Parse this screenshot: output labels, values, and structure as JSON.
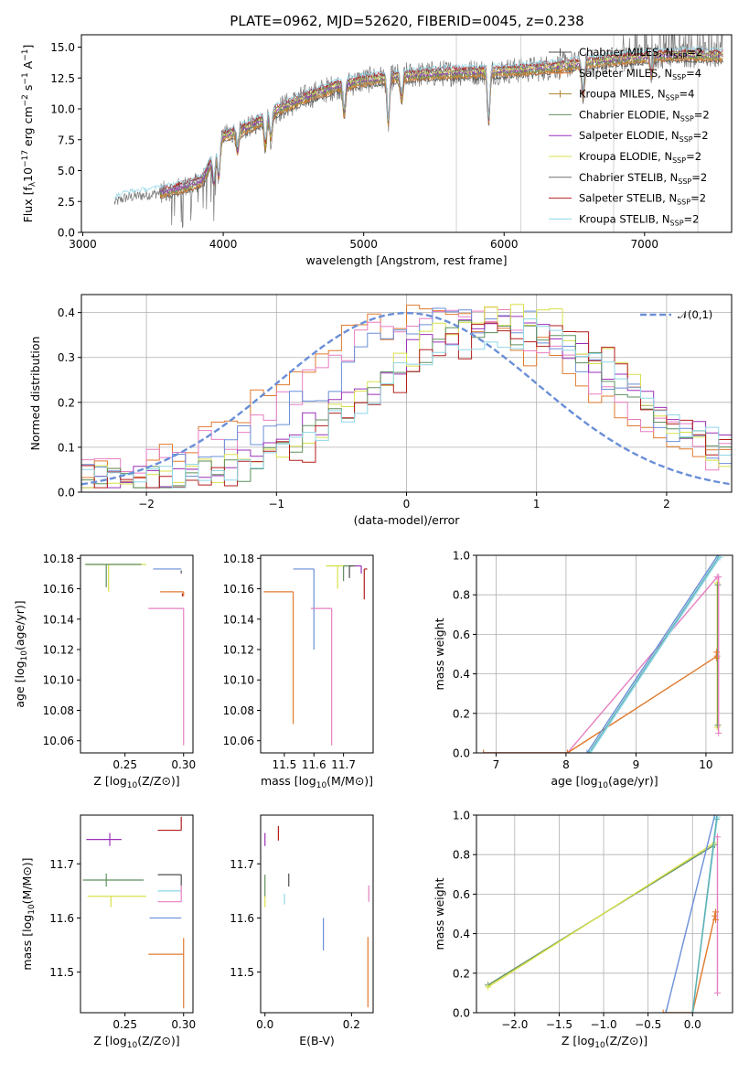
{
  "figure": {
    "title": "PLATE=0962, MJD=52620, FIBERID=0045, z=0.238"
  },
  "colors": {
    "Chabrier MILES": "#4d4d4d",
    "Salpeter MILES": "#e07a2e",
    "Kroupa MILES": "#b08830",
    "Chabrier ELODIE": "#5f8f5f",
    "Salpeter ELODIE": "#9b30b8",
    "Kroupa ELODIE": "#d8e04a",
    "Chabrier STELIB": "#6f6f6f",
    "Salpeter STELIB": "#b41e1e",
    "Kroupa STELIB": "#8fd6e8",
    "pink": "#e77fc2",
    "blue": "#6a8fd8",
    "orange": "#e07a2e",
    "teal": "#5bb0b0"
  },
  "chart_data": [
    {
      "type": "line",
      "panel": "spectrum",
      "title": "PLATE=0962, MJD=52620, FIBERID=0045, z=0.238",
      "xlabel": "wavelength [Angstrom, rest frame]",
      "ylabel_parts": [
        "Flux [f",
        "λ",
        "10",
        "−17",
        " erg cm",
        "−2",
        " s",
        "−1",
        " A",
        "−1",
        "]"
      ],
      "xlim": [
        2990,
        7620
      ],
      "ylim": [
        0,
        16
      ],
      "xticks": [
        3000,
        4000,
        5000,
        6000,
        7000
      ],
      "yticks": [
        0.0,
        2.5,
        5.0,
        7.5,
        10.0,
        12.5,
        15.0
      ],
      "ytick_labels": [
        "0.0",
        "2.5",
        "5.0",
        "7.5",
        "10.0",
        "12.5",
        "15.0"
      ],
      "legend_position": "upper right",
      "legend": [
        {
          "name": "Chabrier MILES",
          "nssp": "2",
          "marker": "+"
        },
        {
          "name": "Salpeter MILES",
          "nssp": "4",
          "marker": "+"
        },
        {
          "name": "Kroupa MILES",
          "nssp": "4",
          "marker": "+"
        },
        {
          "name": "Chabrier ELODIE",
          "nssp": "2",
          "marker": ""
        },
        {
          "name": "Salpeter ELODIE",
          "nssp": "2",
          "marker": ""
        },
        {
          "name": "Kroupa ELODIE",
          "nssp": "2",
          "marker": ""
        },
        {
          "name": "Chabrier STELIB",
          "nssp": "2",
          "marker": ""
        },
        {
          "name": "Salpeter STELIB",
          "nssp": "2",
          "marker": ""
        },
        {
          "name": "Kroupa STELIB",
          "nssp": "2",
          "marker": ""
        }
      ],
      "legend_suffix": "SSP",
      "continuum_knots": [
        [
          3225,
          2.4
        ],
        [
          3300,
          2.8
        ],
        [
          3500,
          3.1
        ],
        [
          3700,
          3.6
        ],
        [
          3850,
          4.2
        ],
        [
          3950,
          6.5
        ],
        [
          4000,
          7.8
        ],
        [
          4200,
          8.6
        ],
        [
          4400,
          10.0
        ],
        [
          4600,
          11.0
        ],
        [
          4800,
          11.8
        ],
        [
          5000,
          12.3
        ],
        [
          5300,
          12.7
        ],
        [
          5600,
          12.9
        ],
        [
          5900,
          13.0
        ],
        [
          6200,
          13.2
        ],
        [
          6500,
          13.6
        ],
        [
          6800,
          14.0
        ],
        [
          7100,
          14.3
        ],
        [
          7300,
          14.4
        ],
        [
          7560,
          14.3
        ]
      ],
      "data_x_range": [
        3225,
        7560
      ],
      "model_x_range": [
        3550,
        7560
      ]
    },
    {
      "type": "histogram",
      "panel": "residuals",
      "xlabel": "(data-model)/error",
      "ylabel": "Normed distribution",
      "xlim": [
        -2.5,
        2.5
      ],
      "ylim": [
        0,
        0.44
      ],
      "xticks": [
        -2,
        -1,
        0,
        1,
        2
      ],
      "xtick_labels": [
        "−2",
        "−1",
        "0",
        "1",
        "2"
      ],
      "yticks": [
        0.0,
        0.1,
        0.2,
        0.3,
        0.4
      ],
      "ytick_labels": [
        "0.0",
        "0.1",
        "0.2",
        "0.3",
        "0.4"
      ],
      "grid": true,
      "legend_position": "upper right",
      "gaussian": {
        "name": "𝒩(0,1)",
        "mu": 0,
        "sigma": 1
      },
      "bins": 50,
      "series": [
        {
          "name": "Salpeter MILES",
          "color": "#e07a2e",
          "center": 0.2,
          "sigma": 1.05,
          "peak": 0.37,
          "noise": 0.045
        },
        {
          "name": "Chabrier MILES",
          "color": "#e77fc2",
          "center": 0.35,
          "sigma": 1.05,
          "peak": 0.36,
          "noise": 0.04
        },
        {
          "name": "Kroupa STELIB",
          "color": "#6a8fd8",
          "center": 0.5,
          "sigma": 1.0,
          "peak": 0.37,
          "noise": 0.04
        },
        {
          "name": "Salpeter ELODIE",
          "color": "#9b30b8",
          "center": 0.7,
          "sigma": 0.95,
          "peak": 0.35,
          "noise": 0.035
        },
        {
          "name": "Kroupa ELODIE",
          "color": "#d8e04a",
          "center": 0.75,
          "sigma": 0.9,
          "peak": 0.37,
          "noise": 0.04
        },
        {
          "name": "Chabrier ELODIE",
          "color": "#5f8f5f",
          "center": 0.75,
          "sigma": 0.9,
          "peak": 0.34,
          "noise": 0.035
        },
        {
          "name": "Salpeter STELIB",
          "color": "#b41e1e",
          "center": 0.85,
          "sigma": 0.92,
          "peak": 0.33,
          "noise": 0.04
        },
        {
          "name": "Kroupa STELIB",
          "color": "#8fd6e8",
          "center": 0.8,
          "sigma": 0.95,
          "peak": 0.33,
          "noise": 0.035
        }
      ]
    },
    {
      "type": "errorbar",
      "panel": "age-vs-Z",
      "xlabel": "Z [log10(Z/Z⊙)]",
      "ylabel": "age [log10(age/yr)]",
      "xlim": [
        0.212,
        0.308
      ],
      "ylim": [
        10.052,
        10.182
      ],
      "xticks": [
        0.25,
        0.3
      ],
      "xtick_labels": [
        "0.25",
        "0.30"
      ],
      "yticks": [
        10.06,
        10.08,
        10.1,
        10.12,
        10.14,
        10.16,
        10.18
      ],
      "ytick_labels": [
        "10.06",
        "10.08",
        "10.10",
        "10.12",
        "10.14",
        "10.16",
        "10.18"
      ],
      "points": [
        {
          "x": 0.236,
          "y": 10.176,
          "xerr": [
            0.02,
            0.032
          ],
          "yerr": [
            0.018,
            0.0
          ],
          "color": "#d8e04a"
        },
        {
          "x": 0.234,
          "y": 10.176,
          "xerr": [
            0.018,
            0.03
          ],
          "yerr": [
            0.015,
            0.0
          ],
          "color": "#5f8f5f"
        },
        {
          "x": 0.298,
          "y": 10.173,
          "xerr": [
            0.024,
            0.0
          ],
          "yerr": [
            0.0,
            0.0
          ],
          "color": "#6a8fd8"
        },
        {
          "x": 0.298,
          "y": 10.172,
          "xerr": [
            0.0,
            0.0
          ],
          "yerr": [
            0.002,
            0.0
          ],
          "color": "#4d4d4d"
        },
        {
          "x": 0.3,
          "y": 10.158,
          "xerr": [
            0.02,
            0.0
          ],
          "yerr": [
            0.003,
            0.0
          ],
          "color": "#e07a2e"
        },
        {
          "x": 0.3,
          "y": 10.147,
          "xerr": [
            0.03,
            0.0
          ],
          "yerr": [
            0.09,
            0.0
          ],
          "color": "#e77fc2"
        },
        {
          "x": 0.299,
          "y": 10.157,
          "xerr": [
            0.0,
            0.0
          ],
          "yerr": [
            0.002,
            0.0
          ],
          "color": "#b41e1e"
        }
      ]
    },
    {
      "type": "errorbar",
      "panel": "age-vs-mass",
      "xlabel": "mass [log10(M/M⊙)]",
      "xlim": [
        11.42,
        11.8
      ],
      "ylim": [
        10.052,
        10.182
      ],
      "xticks": [
        11.5,
        11.6,
        11.7
      ],
      "xtick_labels": [
        "11.5",
        "11.6",
        "11.7"
      ],
      "yticks": [
        10.06,
        10.08,
        10.1,
        10.12,
        10.14,
        10.16,
        10.18
      ],
      "ytick_labels": [
        "10.06",
        "10.08",
        "10.10",
        "10.12",
        "10.14",
        "10.16",
        "10.18"
      ],
      "points": [
        {
          "x": 11.53,
          "y": 10.158,
          "xerr": [
            0.1,
            0.0
          ],
          "yerr": [
            0.087,
            0.0
          ],
          "color": "#e07a2e"
        },
        {
          "x": 11.6,
          "y": 10.173,
          "xerr": [
            0.07,
            0.0
          ],
          "yerr": [
            0.053,
            0.0
          ],
          "color": "#6a8fd8"
        },
        {
          "x": 11.66,
          "y": 10.147,
          "xerr": [
            0.07,
            0.0
          ],
          "yerr": [
            0.09,
            0.0
          ],
          "color": "#e77fc2"
        },
        {
          "x": 11.68,
          "y": 10.175,
          "xerr": [
            0.04,
            0.03
          ],
          "yerr": [
            0.015,
            0.0
          ],
          "color": "#d8e04a"
        },
        {
          "x": 11.7,
          "y": 10.175,
          "xerr": [
            0.0,
            0.03
          ],
          "yerr": [
            0.01,
            0.0
          ],
          "color": "#5f8f5f"
        },
        {
          "x": 11.72,
          "y": 10.175,
          "xerr": [
            0.0,
            0.02
          ],
          "yerr": [
            0.008,
            0.0
          ],
          "color": "#4d4d4d"
        },
        {
          "x": 11.76,
          "y": 10.175,
          "xerr": [
            0.02,
            0.0
          ],
          "yerr": [
            0.005,
            0.0
          ],
          "color": "#9b30b8"
        },
        {
          "x": 11.77,
          "y": 10.173,
          "xerr": [
            0.0,
            0.01
          ],
          "yerr": [
            0.02,
            0.0
          ],
          "color": "#b41e1e"
        }
      ]
    },
    {
      "type": "line",
      "panel": "massweight-vs-age",
      "xlabel": "age  [log10(age/yr)]",
      "ylabel": "mass weight",
      "xlim": [
        6.72,
        10.38
      ],
      "ylim": [
        0,
        1
      ],
      "xticks": [
        7,
        8,
        9,
        10
      ],
      "xtick_labels": [
        "7",
        "8",
        "9",
        "10"
      ],
      "yticks": [
        0.0,
        0.2,
        0.4,
        0.6,
        0.8,
        1.0
      ],
      "ytick_labels": [
        "0.0",
        "0.2",
        "0.4",
        "0.6",
        "0.8",
        "1.0"
      ],
      "grid": true,
      "series": [
        {
          "color": "#e77fc2",
          "x": [
            6.82,
            8.02,
            10.16
          ],
          "y": [
            0.0,
            0.0,
            0.89
          ]
        },
        {
          "color": "#e07a2e",
          "x": [
            6.82,
            8.02,
            10.16
          ],
          "y": [
            0.0,
            0.0,
            0.49
          ]
        },
        {
          "color": "#6a8fd8",
          "x": [
            8.3,
            10.17
          ],
          "y": [
            0.0,
            1.0
          ]
        },
        {
          "color": "#5bb0b0",
          "x": [
            8.33,
            10.18
          ],
          "y": [
            0.0,
            0.99
          ]
        },
        {
          "color": "#8fd6e8",
          "x": [
            8.35,
            10.2
          ],
          "y": [
            0.0,
            0.99
          ]
        },
        {
          "color": "#d8e04a",
          "x": [
            10.16,
            10.16
          ],
          "y": [
            0.13,
            0.86
          ]
        },
        {
          "color": "#5f8f5f",
          "x": [
            10.17,
            10.17
          ],
          "y": [
            0.14,
            0.85
          ]
        },
        {
          "color": "#e77fc2",
          "x": [
            10.18,
            10.18
          ],
          "y": [
            0.1,
            0.89
          ]
        },
        {
          "color": "#e07a2e",
          "x": [
            10.15,
            10.15
          ],
          "y": [
            0.48,
            0.51
          ]
        }
      ]
    },
    {
      "type": "errorbar",
      "panel": "mass-vs-Z",
      "xlabel": "Z [log10(Z/Z⊙)]",
      "ylabel": "mass [log10(M/M⊙)]",
      "xlim": [
        0.212,
        0.308
      ],
      "ylim": [
        11.425,
        11.79
      ],
      "xticks": [
        0.25,
        0.3
      ],
      "xtick_labels": [
        "0.25",
        "0.30"
      ],
      "yticks": [
        11.5,
        11.6,
        11.7
      ],
      "ytick_labels": [
        "11.5",
        "11.6",
        "11.7"
      ],
      "points": [
        {
          "x": 0.237,
          "y": 11.745,
          "xerr": [
            0.02,
            0.01
          ],
          "yerr": [
            0.012,
            0.012
          ],
          "color": "#9b30b8"
        },
        {
          "x": 0.234,
          "y": 11.67,
          "xerr": [
            0.02,
            0.032
          ],
          "yerr": [
            0.012,
            0.012
          ],
          "color": "#5f8f5f"
        },
        {
          "x": 0.238,
          "y": 11.64,
          "xerr": [
            0.02,
            0.03
          ],
          "yerr": [
            0.02,
            0.0
          ],
          "color": "#d8e04a"
        },
        {
          "x": 0.298,
          "y": 11.762,
          "xerr": [
            0.02,
            0.0
          ],
          "yerr": [
            0.0,
            0.025
          ],
          "color": "#b41e1e"
        },
        {
          "x": 0.298,
          "y": 11.68,
          "xerr": [
            0.02,
            0.0
          ],
          "yerr": [
            0.02,
            0.0
          ],
          "color": "#4d4d4d"
        },
        {
          "x": 0.298,
          "y": 11.65,
          "xerr": [
            0.02,
            0.0
          ],
          "yerr": [
            0.0,
            0.0
          ],
          "color": "#8fd6e8"
        },
        {
          "x": 0.298,
          "y": 11.63,
          "xerr": [
            0.02,
            0.0
          ],
          "yerr": [
            0.0,
            0.03
          ],
          "color": "#e77fc2"
        },
        {
          "x": 0.298,
          "y": 11.6,
          "xerr": [
            0.027,
            0.0
          ],
          "yerr": [
            0.0,
            0.0
          ],
          "color": "#6a8fd8"
        },
        {
          "x": 0.3,
          "y": 11.533,
          "xerr": [
            0.03,
            0.0
          ],
          "yerr": [
            0.1,
            0.03
          ],
          "color": "#e07a2e"
        }
      ]
    },
    {
      "type": "errorbar",
      "panel": "mass-vs-EBV",
      "xlabel": "E(B-V)",
      "xlim": [
        -0.01,
        0.25
      ],
      "ylim": [
        11.425,
        11.79
      ],
      "xticks": [
        0.0,
        0.2
      ],
      "xtick_labels": [
        "0.0",
        "0.2"
      ],
      "yticks": [
        11.5,
        11.6,
        11.7
      ],
      "ytick_labels": [
        "11.5",
        "11.6",
        "11.7"
      ],
      "points": [
        {
          "x": 0.0,
          "y": 11.745,
          "yerr": [
            0.012,
            0.012
          ],
          "color": "#9b30b8"
        },
        {
          "x": 0.0,
          "y": 11.66,
          "yerr": [
            0.02,
            0.02
          ],
          "color": "#5f8f5f"
        },
        {
          "x": 0.0,
          "y": 11.64,
          "yerr": [
            0.02,
            0.0
          ],
          "color": "#d8e04a"
        },
        {
          "x": 0.031,
          "y": 11.755,
          "yerr": [
            0.012,
            0.015
          ],
          "color": "#b41e1e"
        },
        {
          "x": 0.055,
          "y": 11.67,
          "yerr": [
            0.012,
            0.012
          ],
          "color": "#4d4d4d"
        },
        {
          "x": 0.045,
          "y": 11.645,
          "yerr": [
            0.02,
            0.0
          ],
          "color": "#8fd6e8"
        },
        {
          "x": 0.135,
          "y": 11.57,
          "yerr": [
            0.03,
            0.03
          ],
          "color": "#6a8fd8"
        },
        {
          "x": 0.24,
          "y": 11.63,
          "yerr": [
            0.0,
            0.03
          ],
          "color": "#e77fc2"
        },
        {
          "x": 0.238,
          "y": 11.5,
          "yerr": [
            0.065,
            0.065
          ],
          "color": "#e07a2e"
        }
      ]
    },
    {
      "type": "line",
      "panel": "massweight-vs-Z",
      "xlabel": "Z [log10(Z/Z⊙)]",
      "ylabel": "mass weight",
      "xlim": [
        -2.43,
        0.45
      ],
      "ylim": [
        0,
        1
      ],
      "xticks": [
        -2.0,
        -1.5,
        -1.0,
        -0.5,
        0.0
      ],
      "xtick_labels": [
        "−2.0",
        "−1.5",
        "−1.0",
        "−0.5",
        "0.0"
      ],
      "yticks": [
        0.0,
        0.2,
        0.4,
        0.6,
        0.8,
        1.0
      ],
      "ytick_labels": [
        "0.0",
        "0.2",
        "0.4",
        "0.6",
        "0.8",
        "1.0"
      ],
      "grid": true,
      "series": [
        {
          "color": "#5f8f5f",
          "x": [
            -2.3,
            0.25
          ],
          "y": [
            0.14,
            0.85
          ]
        },
        {
          "color": "#d8e04a",
          "x": [
            -2.3,
            0.25
          ],
          "y": [
            0.13,
            0.86
          ]
        },
        {
          "color": "#6a8fd8",
          "x": [
            -0.3,
            0.25
          ],
          "y": [
            0.0,
            1.0
          ]
        },
        {
          "color": "#e07a2e",
          "x": [
            -0.33,
            0.0,
            0.25
          ],
          "y": [
            0.0,
            0.0,
            0.49
          ]
        },
        {
          "color": "#8fd6e8",
          "x": [
            0.0,
            0.28
          ],
          "y": [
            0.0,
            0.99
          ]
        },
        {
          "color": "#5bb0b0",
          "x": [
            0.0,
            0.27
          ],
          "y": [
            0.0,
            0.98
          ]
        },
        {
          "color": "#e77fc2",
          "x": [
            0.28,
            0.28
          ],
          "y": [
            0.1,
            0.89
          ]
        },
        {
          "color": "#e07a2e",
          "x": [
            0.26,
            0.26
          ],
          "y": [
            0.47,
            0.51
          ]
        }
      ]
    }
  ]
}
